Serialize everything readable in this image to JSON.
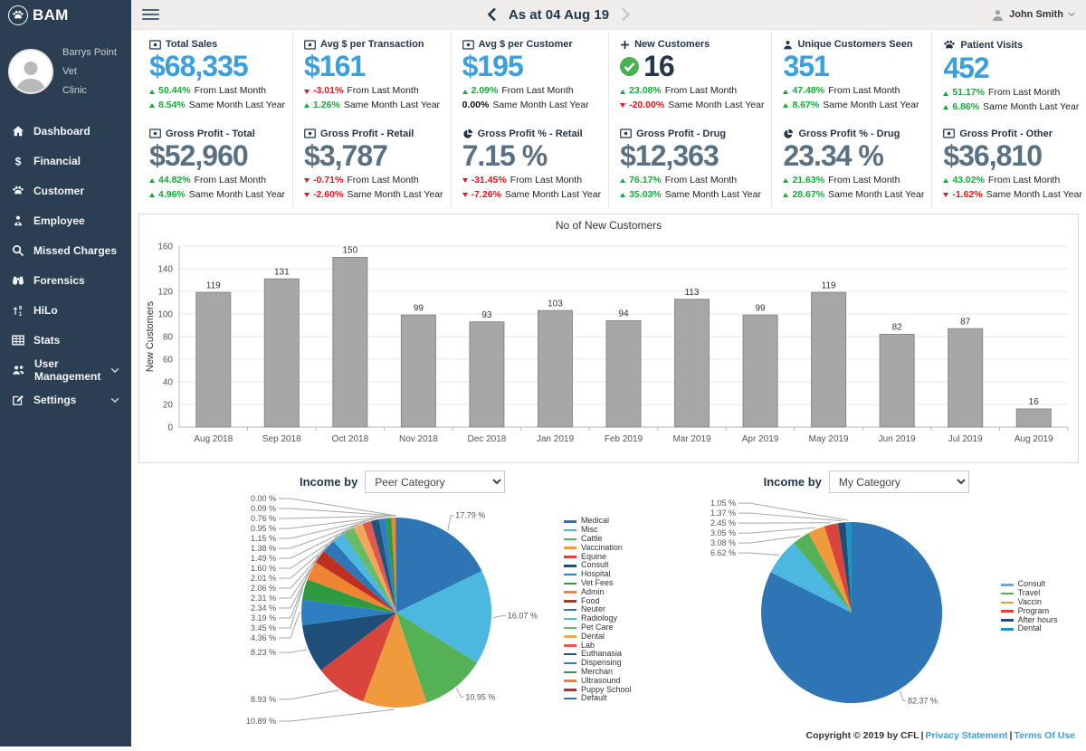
{
  "colors": {
    "accent_blue": "#3b9fdd",
    "slate_value": "#5a7183",
    "navy_text": "#24364a",
    "green_up": "#18a93b",
    "red_down": "#e8151d",
    "sidebar_bg": "#2b3e52",
    "bar_fill": "#a7a7a7",
    "check_green": "#4cb050"
  },
  "app": {
    "logo_text": "BAM",
    "clinic_line1": "Barrys Point Vet",
    "clinic_line2": "Clinic"
  },
  "header": {
    "title": "As at 04 Aug 19",
    "user_name": "John Smith"
  },
  "sidebar": {
    "items": [
      {
        "icon": "home-icon",
        "label": "Dashboard",
        "expandable": false
      },
      {
        "icon": "dollar-icon",
        "label": "Financial",
        "expandable": false
      },
      {
        "icon": "paw-icon",
        "label": "Customer",
        "expandable": false
      },
      {
        "icon": "employee-icon",
        "label": "Employee",
        "expandable": false
      },
      {
        "icon": "search-icon",
        "label": "Missed Charges",
        "expandable": false
      },
      {
        "icon": "binoculars-icon",
        "label": "Forensics",
        "expandable": false
      },
      {
        "icon": "hilo-icon",
        "label": "HiLo",
        "expandable": false
      },
      {
        "icon": "grid-icon",
        "label": "Stats",
        "expandable": false
      },
      {
        "icon": "users-icon",
        "label": "User Management",
        "expandable": true
      },
      {
        "icon": "edit-icon",
        "label": "Settings",
        "expandable": true
      }
    ]
  },
  "kpis": [
    {
      "icon": "money-icon",
      "title": "Total Sales",
      "value": "$68,335",
      "value_style": "blue",
      "badge": null,
      "changes": [
        {
          "dir": "up",
          "pct": "50.44%",
          "label": "From Last Month"
        },
        {
          "dir": "up",
          "pct": "8.54%",
          "label": "Same Month Last Year"
        }
      ]
    },
    {
      "icon": "money-icon",
      "title": "Avg $ per Transaction",
      "value": "$161",
      "value_style": "blue",
      "badge": null,
      "changes": [
        {
          "dir": "down",
          "pct": "-3.01%",
          "label": "From Last Month"
        },
        {
          "dir": "up",
          "pct": "1.26%",
          "label": "Same Month Last Year"
        }
      ]
    },
    {
      "icon": "money-icon",
      "title": "Avg $ per Customer",
      "value": "$195",
      "value_style": "blue",
      "badge": null,
      "changes": [
        {
          "dir": "up",
          "pct": "2.09%",
          "label": "From Last Month"
        },
        {
          "dir": "none",
          "pct": "0.00%",
          "label": "Same Month Last Year"
        }
      ]
    },
    {
      "icon": "plus-icon",
      "title": "New Customers",
      "value": "16",
      "value_style": "navy",
      "badge": "check-circle-icon",
      "changes": [
        {
          "dir": "up",
          "pct": "23.08%",
          "label": "From Last Month"
        },
        {
          "dir": "down",
          "pct": "-20.00%",
          "label": "Same Month Last Year"
        }
      ]
    },
    {
      "icon": "person-icon",
      "title": "Unique Customers Seen",
      "value": "351",
      "value_style": "blue",
      "badge": null,
      "changes": [
        {
          "dir": "up",
          "pct": "47.48%",
          "label": "From Last Month"
        },
        {
          "dir": "up",
          "pct": "8.67%",
          "label": "Same Month Last Year"
        }
      ]
    },
    {
      "icon": "paw-icon",
      "title": "Patient Visits",
      "value": "452",
      "value_style": "blue",
      "badge": null,
      "changes": [
        {
          "dir": "up",
          "pct": "51.17%",
          "label": "From Last Month"
        },
        {
          "dir": "up",
          "pct": "6.86%",
          "label": "Same Month Last Year"
        }
      ]
    },
    {
      "icon": "money-icon",
      "title": "Gross Profit - Total",
      "value": "$52,960",
      "value_style": "slate",
      "badge": null,
      "changes": [
        {
          "dir": "up",
          "pct": "44.82%",
          "label": "From Last Month"
        },
        {
          "dir": "up",
          "pct": "4.96%",
          "label": "Same Month Last Year"
        }
      ]
    },
    {
      "icon": "money-icon",
      "title": "Gross Profit - Retail",
      "value": "$3,787",
      "value_style": "slate",
      "badge": null,
      "changes": [
        {
          "dir": "down",
          "pct": "-0.71%",
          "label": "From Last Month"
        },
        {
          "dir": "down",
          "pct": "-2.60%",
          "label": "Same Month Last Year"
        }
      ]
    },
    {
      "icon": "pie-icon",
      "title": "Gross Profit % - Retail",
      "value": "7.15 %",
      "value_style": "slate",
      "badge": null,
      "changes": [
        {
          "dir": "down",
          "pct": "-31.45%",
          "label": "From Last Month"
        },
        {
          "dir": "down",
          "pct": "-7.26%",
          "label": "Same Month Last Year"
        }
      ]
    },
    {
      "icon": "money-icon",
      "title": "Gross Profit - Drug",
      "value": "$12,363",
      "value_style": "slate",
      "badge": null,
      "changes": [
        {
          "dir": "up",
          "pct": "76.17%",
          "label": "From Last Month"
        },
        {
          "dir": "up",
          "pct": "35.03%",
          "label": "Same Month Last Year"
        }
      ]
    },
    {
      "icon": "pie-icon",
      "title": "Gross Profit % - Drug",
      "value": "23.34 %",
      "value_style": "slate",
      "badge": null,
      "changes": [
        {
          "dir": "up",
          "pct": "21.63%",
          "label": "From Last Month"
        },
        {
          "dir": "up",
          "pct": "28.67%",
          "label": "Same Month Last Year"
        }
      ]
    },
    {
      "icon": "money-icon",
      "title": "Gross Profit - Other",
      "value": "$36,810",
      "value_style": "slate",
      "badge": null,
      "changes": [
        {
          "dir": "up",
          "pct": "43.02%",
          "label": "From Last Month"
        },
        {
          "dir": "down",
          "pct": "-1.62%",
          "label": "Same Month Last Year"
        }
      ]
    }
  ],
  "income_by": {
    "label": "Income by",
    "left_selected": "Peer Category",
    "right_selected": "My Category"
  },
  "chart_data": [
    {
      "type": "bar",
      "title": "No of New Customers",
      "ylabel": "New Customers",
      "xlabel": "",
      "categories": [
        "Aug 2018",
        "Sep 2018",
        "Oct 2018",
        "Nov 2018",
        "Dec 2018",
        "Jan 2019",
        "Feb 2019",
        "Mar 2019",
        "Apr 2019",
        "May 2019",
        "Jun 2019",
        "Jul 2019",
        "Aug 2019"
      ],
      "values": [
        119,
        131,
        150,
        99,
        93,
        103,
        94,
        113,
        99,
        119,
        82,
        87,
        16
      ],
      "ylim": [
        0,
        160
      ],
      "ytick": 20,
      "grid": true,
      "bar_color": "#a7a7a7",
      "bar_stroke": "#878787"
    },
    {
      "type": "pie",
      "name": "income-by-peer-category",
      "selector_value": "Peer Category",
      "unit": "%",
      "legend_position": "right",
      "slices": [
        {
          "label": "Medical",
          "value": 17.79
        },
        {
          "label": "Misc",
          "value": 16.07
        },
        {
          "label": "Cattle",
          "value": 10.95
        },
        {
          "label": "Vaccination",
          "value": 10.89
        },
        {
          "label": "Equine",
          "value": 8.93
        },
        {
          "label": "Consult",
          "value": 8.23
        },
        {
          "label": "Hospital",
          "value": 4.36
        },
        {
          "label": "Vet Fees",
          "value": 3.45
        },
        {
          "label": "Admin",
          "value": 3.19
        },
        {
          "label": "Food",
          "value": 2.34
        },
        {
          "label": "Neuter",
          "value": 2.31
        },
        {
          "label": "Radiology",
          "value": 2.06
        },
        {
          "label": "Pet Care",
          "value": 2.01
        },
        {
          "label": "Dental",
          "value": 1.6
        },
        {
          "label": "Lab",
          "value": 1.49
        },
        {
          "label": "Euthanasia",
          "value": 1.38
        },
        {
          "label": "Dispensing",
          "value": 1.15
        },
        {
          "label": "Merchan",
          "value": 0.95
        },
        {
          "label": "Ultrasound",
          "value": 0.76
        },
        {
          "label": "Puppy School",
          "value": 0.09
        },
        {
          "label": "Default",
          "value": 0.0
        }
      ],
      "colors": [
        "#2e75b6",
        "#4cb8e0",
        "#55b155",
        "#f09a3e",
        "#d9453c",
        "#1f4e79",
        "#2d7fc1",
        "#2e9b3f",
        "#ef8432",
        "#bf2e23",
        "#2e75b6",
        "#4cb8e0",
        "#67bb67",
        "#f2a858",
        "#e05a50",
        "#24527e",
        "#2d7fc1",
        "#2e9b3f",
        "#ef8432",
        "#bf2e23",
        "#2e75b6"
      ]
    },
    {
      "type": "pie",
      "name": "income-by-my-category",
      "selector_value": "My Category",
      "unit": "%",
      "legend_position": "right",
      "slices": [
        {
          "label": "",
          "value": 82.37
        },
        {
          "label": "Consult",
          "value": 6.62
        },
        {
          "label": "Travel",
          "value": 3.08
        },
        {
          "label": "Vaccin",
          "value": 3.05
        },
        {
          "label": "Program",
          "value": 2.45
        },
        {
          "label": "After hours",
          "value": 1.37
        },
        {
          "label": "Dental",
          "value": 1.05
        }
      ],
      "colors": [
        "#2e75b6",
        "#4cb8e0",
        "#55b155",
        "#f09a3e",
        "#d9453c",
        "#1f4e79",
        "#1b94c4"
      ]
    }
  ],
  "footer": {
    "text": "Copyright © 2019 by CFL",
    "separator": "|",
    "links": [
      "Privacy Statement",
      "Terms Of Use"
    ]
  }
}
